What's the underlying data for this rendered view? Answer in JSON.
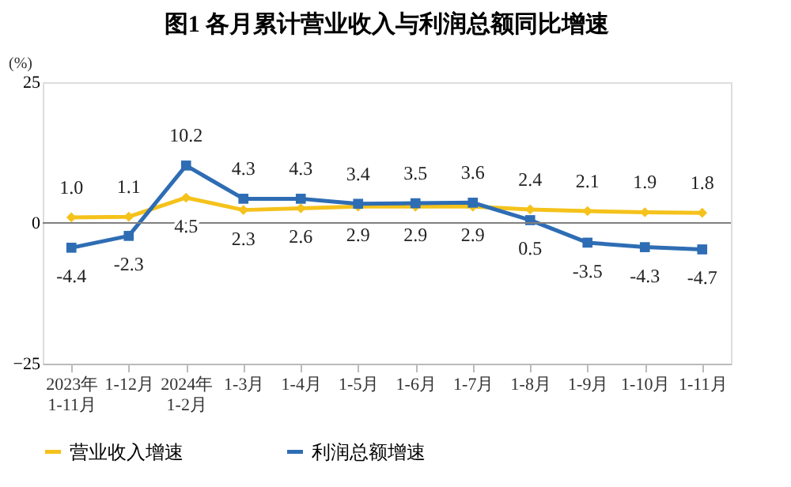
{
  "chart_data": {
    "type": "line",
    "title": "图1  各月累计营业收入与利润总额同比增速",
    "ylabel": "(%)",
    "categories": [
      "2023年\n1-11月",
      "1-12月",
      "2024年\n1-2月",
      "1-3月",
      "1-4月",
      "1-5月",
      "1-6月",
      "1-7月",
      "1-8月",
      "1-9月",
      "1-10月",
      "1-11月"
    ],
    "series": [
      {
        "name": "营业收入增速",
        "color": "#f5c21b",
        "marker": "diamond",
        "values": [
          1.0,
          1.1,
          4.5,
          2.3,
          2.6,
          2.9,
          2.9,
          2.9,
          2.4,
          2.1,
          1.9,
          1.8
        ],
        "value_labels": [
          "1.0",
          "1.1",
          "4.5",
          "2.3",
          "2.6",
          "2.9",
          "2.9",
          "2.9",
          "2.4",
          "2.1",
          "1.9",
          "1.8"
        ],
        "line_style": "solid"
      },
      {
        "name": "利润总额增速",
        "color": "#2e6db4",
        "marker": "square",
        "values": [
          -4.4,
          -2.3,
          10.2,
          4.3,
          4.3,
          3.4,
          3.5,
          3.6,
          0.5,
          -3.5,
          -4.3,
          -4.7
        ],
        "value_labels": [
          "-4.4",
          "-2.3",
          "10.2",
          "4.3",
          "4.3",
          "3.4",
          "3.5",
          "3.6",
          "0.5",
          "-3.5",
          "-4.3",
          "-4.7"
        ],
        "line_style": "solid"
      }
    ],
    "ylim": [
      -25,
      25
    ],
    "yticks": [
      -25,
      0,
      25
    ],
    "grid": false,
    "legend": "bottom",
    "ref_lines": [
      {
        "axis": "y",
        "value": 0,
        "color": "#808080"
      }
    ]
  }
}
